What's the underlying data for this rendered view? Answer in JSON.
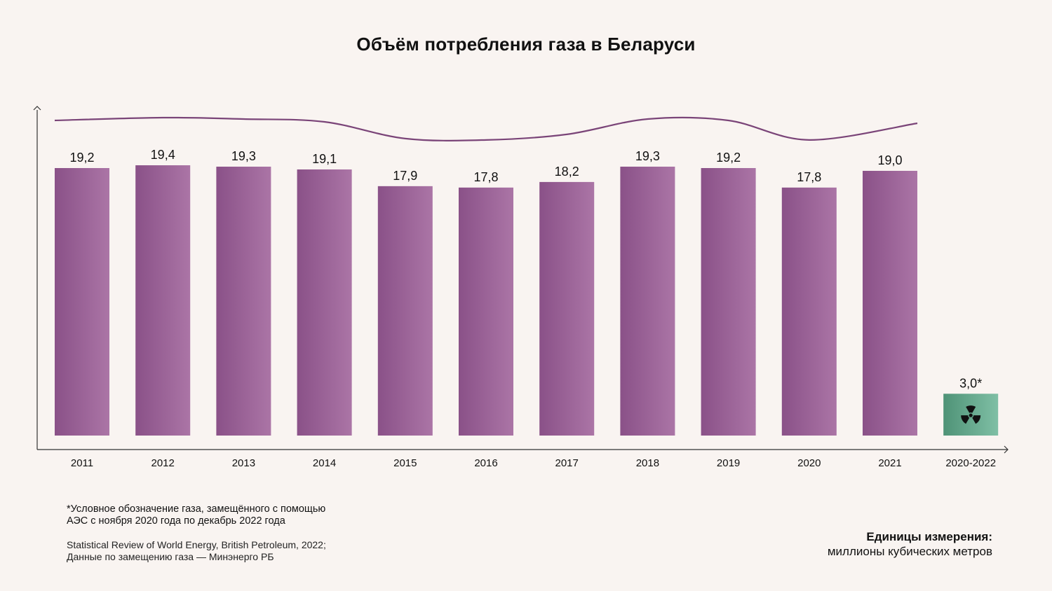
{
  "title": "Объём потребления газа в Беларуси",
  "footnote": {
    "line1": "*Условное обозначение газа, замещённого с помощью",
    "line2": "АЭС с ноября 2020 года по декабрь 2022 года"
  },
  "source": {
    "line1": "Statistical Review of World Energy, British Petroleum, 2022;",
    "line2": "Данные по замещению газа — Минэнерго РБ"
  },
  "units": {
    "title": "Единицы измерения:",
    "value": "миллионы кубических метров"
  },
  "colors": {
    "background": "#f9f4f1",
    "bar_dark": "#8a5188",
    "bar_light": "#ab75a6",
    "special_dark": "#4f9377",
    "special_light": "#7fbfa5",
    "line": "#7a4478",
    "axis": "#333333",
    "radiation_icon": "#111111"
  },
  "chart_data": {
    "type": "bar",
    "categories": [
      "2011",
      "2012",
      "2013",
      "2014",
      "2015",
      "2016",
      "2017",
      "2018",
      "2019",
      "2020",
      "2021",
      "2020-2022"
    ],
    "values": [
      19.2,
      19.4,
      19.3,
      19.1,
      17.9,
      17.8,
      18.2,
      19.3,
      19.2,
      17.8,
      19.0,
      3.0
    ],
    "value_labels": [
      "19,2",
      "19,4",
      "19,3",
      "19,1",
      "17,9",
      "17,8",
      "18,2",
      "19,3",
      "19,2",
      "17,8",
      "19,0",
      "3,0*"
    ],
    "special_category": "2020-2022",
    "special_icon": "radiation-icon",
    "trend_line": true,
    "ylim": [
      0,
      20
    ],
    "xlabel": "",
    "ylabel": "",
    "grid": false,
    "title": "Объём потребления газа в Беларуси"
  }
}
